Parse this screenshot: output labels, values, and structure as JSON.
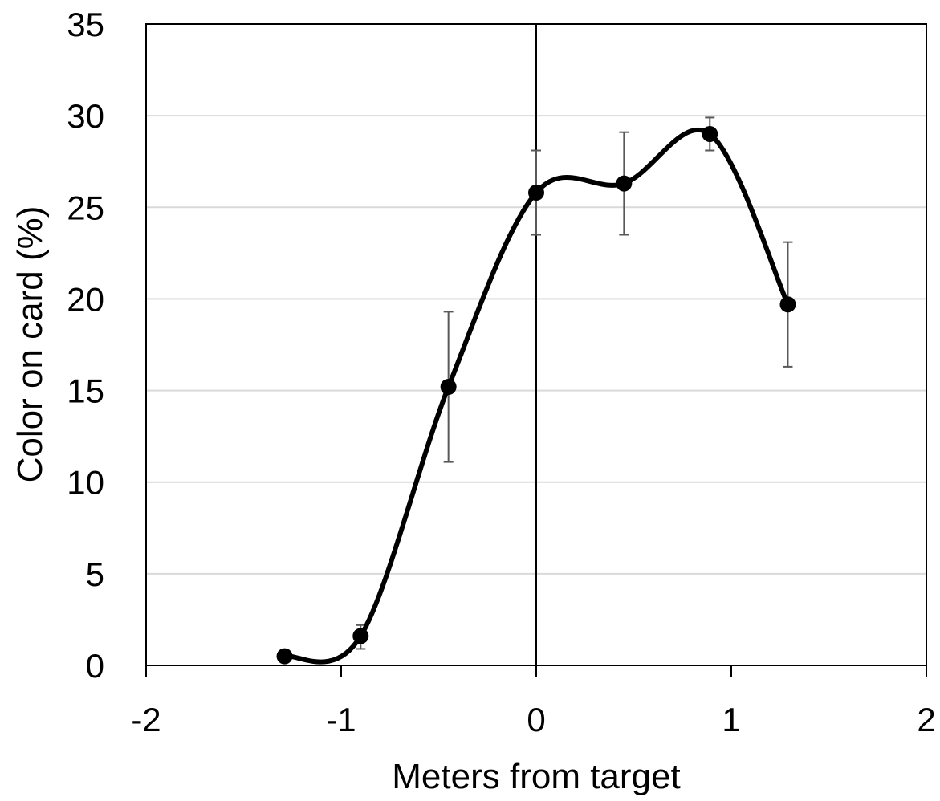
{
  "chart_data": {
    "type": "scatter",
    "title": "",
    "xlabel": "Meters from target",
    "ylabel": "Color on card (%)",
    "xlim": [
      -2,
      2
    ],
    "ylim": [
      0,
      35
    ],
    "x_ticks": [
      "-2",
      "-1",
      "0",
      "1",
      "2"
    ],
    "y_ticks": [
      "0",
      "5",
      "10",
      "15",
      "20",
      "25",
      "30",
      "35"
    ],
    "grid": "horizontal",
    "legend": "none",
    "series": [
      {
        "x": [
          -1.29,
          -0.9,
          -0.45,
          0,
          0.45,
          0.89,
          1.29
        ],
        "y": [
          0.5,
          1.6,
          15.2,
          25.8,
          26.3,
          29.0,
          19.7
        ],
        "error_high": [
          null,
          2.2,
          19.3,
          28.1,
          29.1,
          29.9,
          23.1
        ],
        "error_low": [
          null,
          0.9,
          11.1,
          23.5,
          23.5,
          28.1,
          16.3
        ],
        "line": "smooth",
        "marker": "circle",
        "color": "#000000"
      }
    ]
  },
  "colors": {
    "series": "#000000",
    "grid": "#d9d9d9",
    "error_bar": "#595959",
    "axis": "#000000"
  }
}
